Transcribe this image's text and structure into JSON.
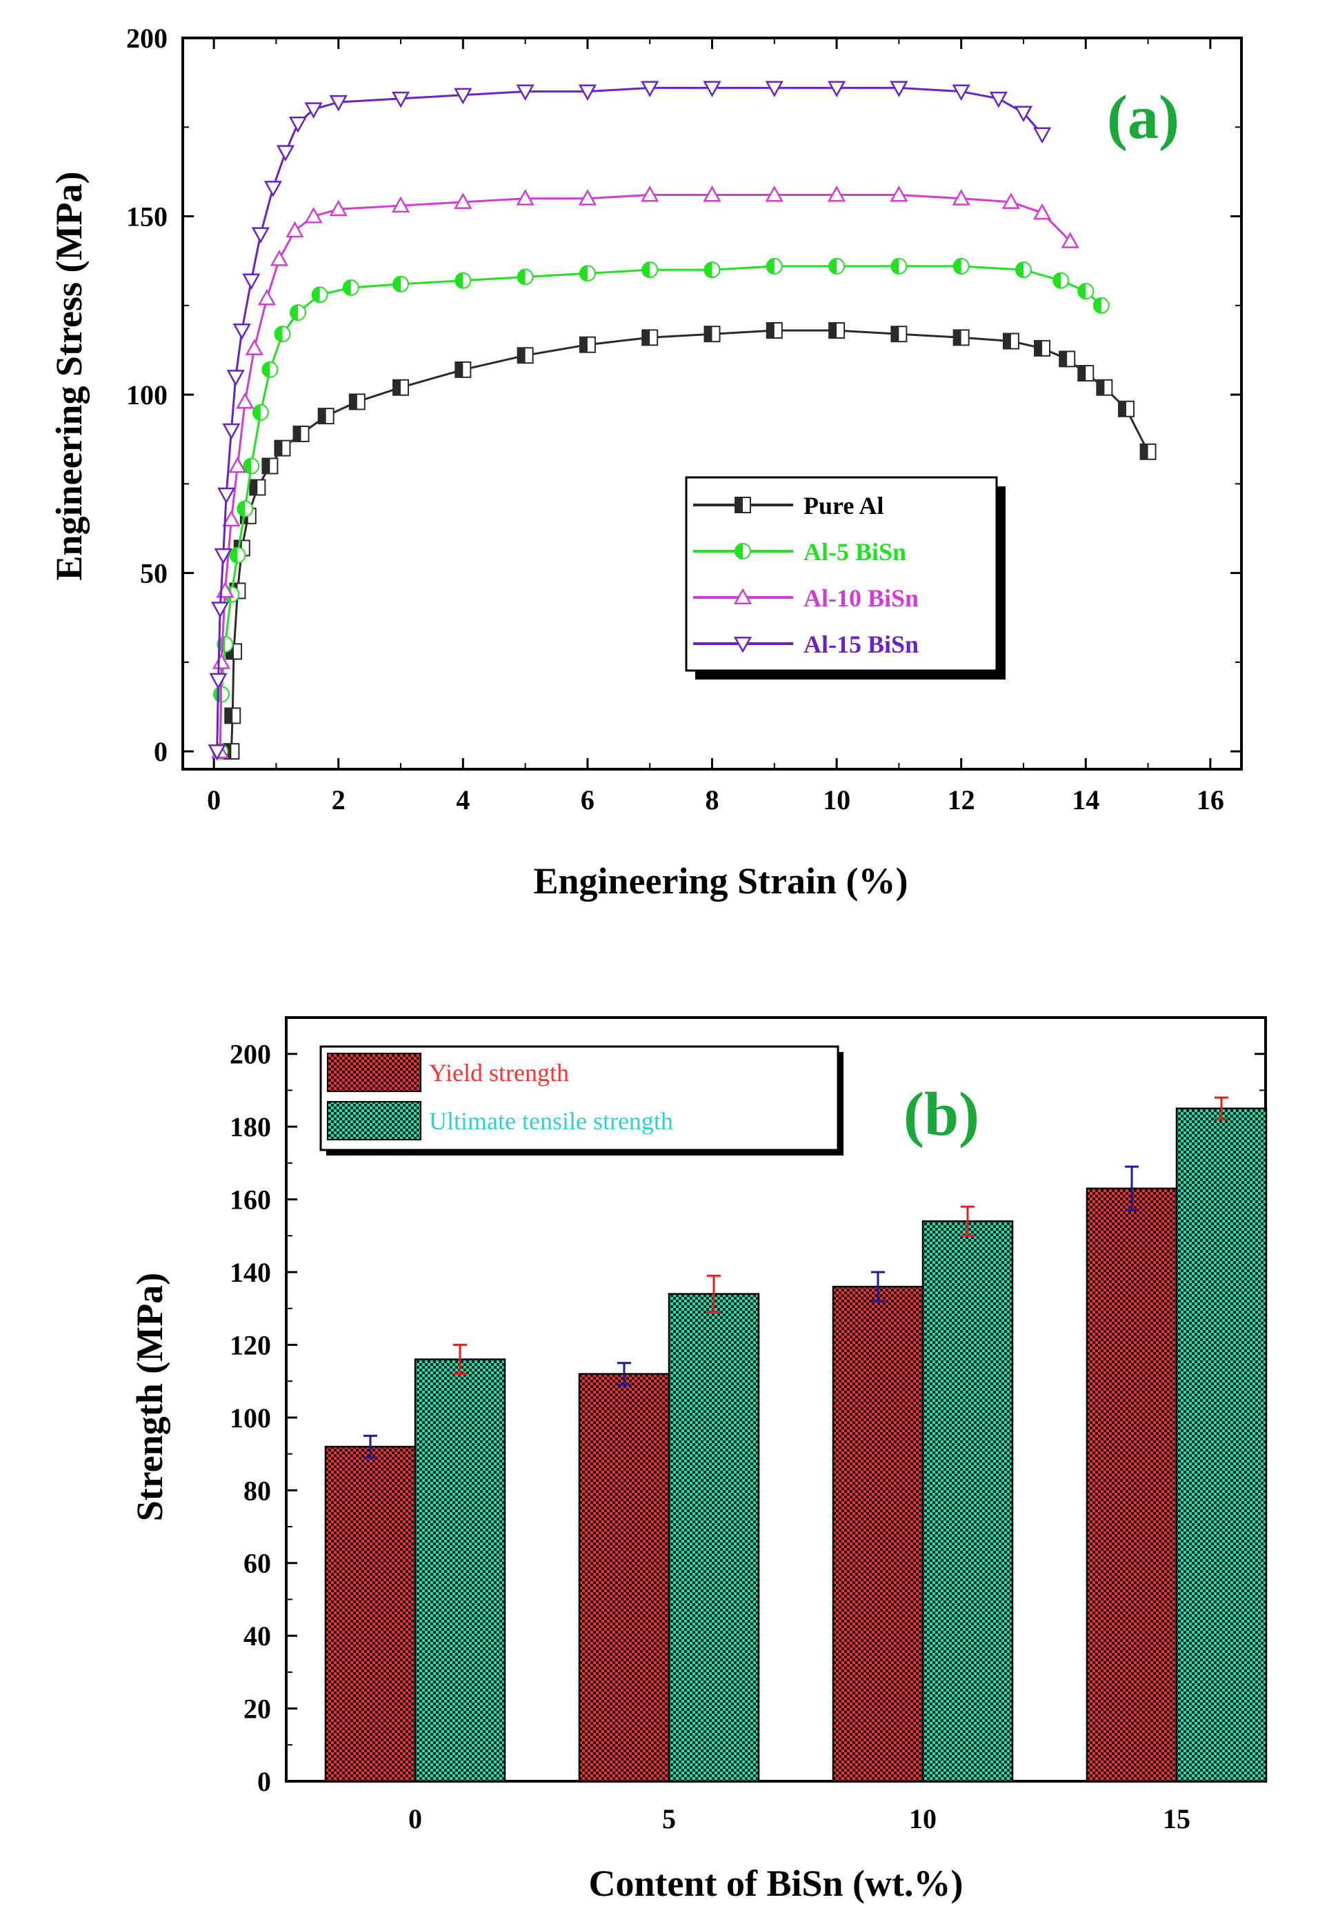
{
  "chart_data": [
    {
      "type": "line",
      "panel_label": "(a)",
      "xlabel": "Engineering Strain (%)",
      "ylabel": "Engineering Stress (MPa)",
      "xlim": [
        -0.5,
        16.5
      ],
      "ylim": [
        -5,
        200
      ],
      "xticks": [
        "0",
        "2",
        "4",
        "6",
        "8",
        "10",
        "12",
        "14",
        "16"
      ],
      "xtick_values": [
        0,
        2,
        4,
        6,
        8,
        10,
        12,
        14,
        16
      ],
      "yticks": [
        "0",
        "50",
        "100",
        "150",
        "200"
      ],
      "ytick_values": [
        0,
        50,
        100,
        150,
        200
      ],
      "legend_position": "center-right",
      "series": [
        {
          "name": "Pure Al",
          "color": "#2a2a2a",
          "marker": "square",
          "points": [
            [
              0.28,
              0
            ],
            [
              0.3,
              10
            ],
            [
              0.32,
              28
            ],
            [
              0.38,
              45
            ],
            [
              0.45,
              57
            ],
            [
              0.55,
              66
            ],
            [
              0.7,
              74
            ],
            [
              0.9,
              80
            ],
            [
              1.1,
              85
            ],
            [
              1.4,
              89
            ],
            [
              1.8,
              94
            ],
            [
              2.3,
              98
            ],
            [
              3,
              102
            ],
            [
              4,
              107
            ],
            [
              5,
              111
            ],
            [
              6,
              114
            ],
            [
              7,
              116
            ],
            [
              8,
              117
            ],
            [
              9,
              118
            ],
            [
              10,
              118
            ],
            [
              11,
              117
            ],
            [
              12,
              116
            ],
            [
              12.8,
              115
            ],
            [
              13.3,
              113
            ],
            [
              13.7,
              110
            ],
            [
              14.0,
              106
            ],
            [
              14.3,
              102
            ],
            [
              14.65,
              96
            ],
            [
              15.0,
              84
            ]
          ]
        },
        {
          "name": "Al-5 BiSn",
          "color": "#22e022",
          "marker": "circle",
          "points": [
            [
              0.1,
              0
            ],
            [
              0.12,
              16
            ],
            [
              0.18,
              30
            ],
            [
              0.28,
              44
            ],
            [
              0.38,
              55
            ],
            [
              0.5,
              68
            ],
            [
              0.6,
              80
            ],
            [
              0.75,
              95
            ],
            [
              0.9,
              107
            ],
            [
              1.1,
              117
            ],
            [
              1.35,
              123
            ],
            [
              1.7,
              128
            ],
            [
              2.2,
              130
            ],
            [
              3,
              131
            ],
            [
              4,
              132
            ],
            [
              5,
              133
            ],
            [
              6,
              134
            ],
            [
              7,
              135
            ],
            [
              8,
              135
            ],
            [
              9,
              136
            ],
            [
              10,
              136
            ],
            [
              11,
              136
            ],
            [
              12,
              136
            ],
            [
              13,
              135
            ],
            [
              13.6,
              132
            ],
            [
              14.0,
              129
            ],
            [
              14.25,
              125
            ]
          ]
        },
        {
          "name": "Al-10 BiSn",
          "color": "#d43ad4",
          "marker": "triangle-up",
          "points": [
            [
              0.1,
              0
            ],
            [
              0.12,
              25
            ],
            [
              0.18,
              45
            ],
            [
              0.28,
              65
            ],
            [
              0.38,
              80
            ],
            [
              0.5,
              98
            ],
            [
              0.65,
              113
            ],
            [
              0.85,
              127
            ],
            [
              1.05,
              138
            ],
            [
              1.3,
              146
            ],
            [
              1.6,
              150
            ],
            [
              2.0,
              152
            ],
            [
              3,
              153
            ],
            [
              4,
              154
            ],
            [
              5,
              155
            ],
            [
              6,
              155
            ],
            [
              7,
              156
            ],
            [
              8,
              156
            ],
            [
              9,
              156
            ],
            [
              10,
              156
            ],
            [
              11,
              156
            ],
            [
              12,
              155
            ],
            [
              12.8,
              154
            ],
            [
              13.3,
              151
            ],
            [
              13.75,
              143
            ]
          ]
        },
        {
          "name": "Al-15 BiSn",
          "color": "#6a22c8",
          "marker": "triangle-down",
          "points": [
            [
              0.05,
              0
            ],
            [
              0.07,
              20
            ],
            [
              0.1,
              40
            ],
            [
              0.15,
              55
            ],
            [
              0.2,
              72
            ],
            [
              0.28,
              90
            ],
            [
              0.35,
              105
            ],
            [
              0.45,
              118
            ],
            [
              0.6,
              132
            ],
            [
              0.75,
              145
            ],
            [
              0.95,
              158
            ],
            [
              1.15,
              168
            ],
            [
              1.35,
              176
            ],
            [
              1.6,
              180
            ],
            [
              2.0,
              182
            ],
            [
              3,
              183
            ],
            [
              4,
              184
            ],
            [
              5,
              185
            ],
            [
              6,
              185
            ],
            [
              7,
              186
            ],
            [
              8,
              186
            ],
            [
              9,
              186
            ],
            [
              10,
              186
            ],
            [
              11,
              186
            ],
            [
              12,
              185
            ],
            [
              12.6,
              183
            ],
            [
              13.0,
              179
            ],
            [
              13.3,
              173
            ]
          ]
        }
      ]
    },
    {
      "type": "bar",
      "panel_label": "(b)",
      "xlabel": "Content of BiSn (wt.%)",
      "ylabel": "Strength (MPa)",
      "categories": [
        "0",
        "5",
        "10",
        "15"
      ],
      "ylim": [
        0,
        210
      ],
      "yticks": [
        "0",
        "20",
        "40",
        "60",
        "80",
        "100",
        "120",
        "140",
        "160",
        "180",
        "200"
      ],
      "ytick_values": [
        0,
        20,
        40,
        60,
        80,
        100,
        120,
        140,
        160,
        180,
        200
      ],
      "legend_position": "top-left",
      "series": [
        {
          "name": "Yield strength",
          "color": "#e63535",
          "label_color": "#ff3030",
          "error_color": "#1a1a9a",
          "values": [
            92,
            112,
            136,
            163
          ],
          "errors": [
            3,
            3,
            4,
            6
          ]
        },
        {
          "name": "Ultimate tensile strength",
          "color": "#2bd6a8",
          "label_color": "#2ad2d2",
          "error_color": "#e02020",
          "values": [
            116,
            134,
            154,
            185
          ],
          "errors": [
            4,
            5,
            4,
            3
          ]
        }
      ]
    }
  ]
}
